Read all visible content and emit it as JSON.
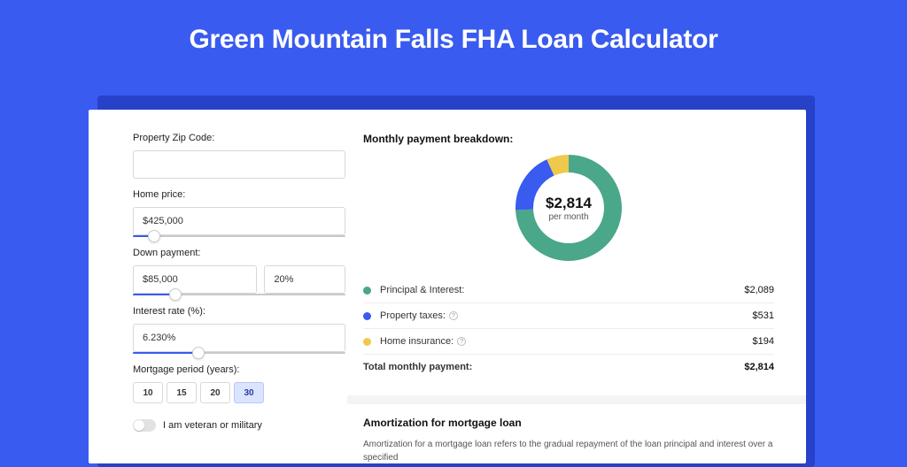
{
  "page": {
    "title": "Green Mountain Falls FHA Loan Calculator",
    "background_color": "#3a5bef",
    "shadow_color": "#2642c9"
  },
  "form": {
    "zip_label": "Property Zip Code:",
    "zip_value": "",
    "home_price_label": "Home price:",
    "home_price_value": "$425,000",
    "home_price_slider_pct": 10,
    "down_payment_label": "Down payment:",
    "down_payment_amount": "$85,000",
    "down_payment_pct": "20%",
    "down_payment_slider_pct": 20,
    "interest_label": "Interest rate (%):",
    "interest_value": "6.230%",
    "interest_slider_pct": 31,
    "period_label": "Mortgage period (years):",
    "periods": [
      {
        "label": "10",
        "selected": false
      },
      {
        "label": "15",
        "selected": false
      },
      {
        "label": "20",
        "selected": false
      },
      {
        "label": "30",
        "selected": true
      }
    ],
    "veteran_label": "I am veteran or military",
    "veteran_on": false
  },
  "breakdown": {
    "title": "Monthly payment breakdown:",
    "donut": {
      "amount": "$2,814",
      "sub": "per month",
      "slices": [
        {
          "name": "principal_interest",
          "pct": 74.2,
          "color": "#4aa789"
        },
        {
          "name": "property_taxes",
          "pct": 18.9,
          "color": "#3a5bef"
        },
        {
          "name": "home_insurance",
          "pct": 6.9,
          "color": "#efc94c"
        }
      ],
      "stroke_width": 20
    },
    "legend": [
      {
        "dot_color": "#4aa789",
        "label": "Principal & Interest:",
        "has_info": false,
        "value": "$2,089"
      },
      {
        "dot_color": "#3a5bef",
        "label": "Property taxes:",
        "has_info": true,
        "value": "$531"
      },
      {
        "dot_color": "#efc94c",
        "label": "Home insurance:",
        "has_info": true,
        "value": "$194"
      }
    ],
    "total_label": "Total monthly payment:",
    "total_value": "$2,814"
  },
  "amortization": {
    "title": "Amortization for mortgage loan",
    "text": "Amortization for a mortgage loan refers to the gradual repayment of the loan principal and interest over a specified"
  }
}
